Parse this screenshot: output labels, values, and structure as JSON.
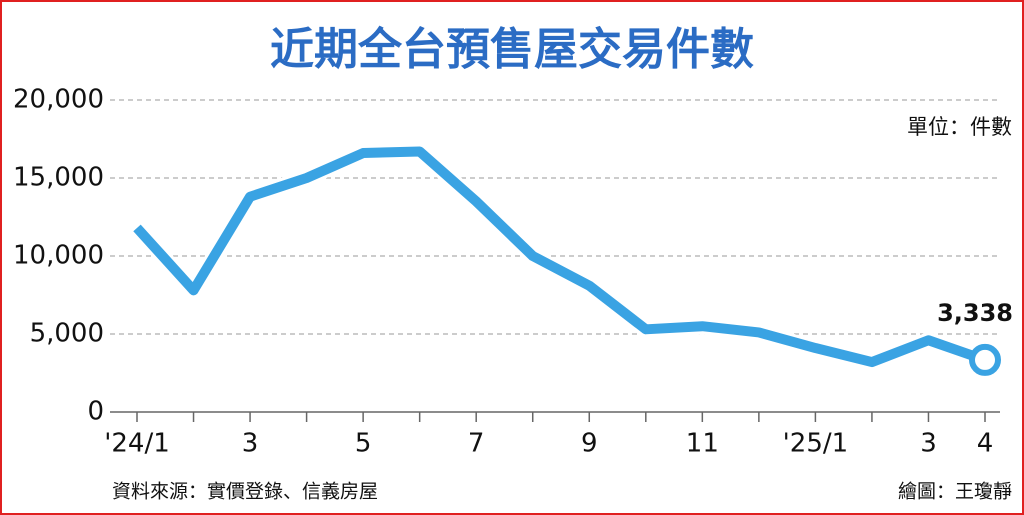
{
  "chart_data": {
    "type": "line",
    "title": "近期全台預售屋交易件數",
    "unit_label": "單位：件數",
    "source": "資料來源：實價登錄、信義房屋",
    "credit": "繪圖：王瓊靜",
    "categories": [
      "'24/1",
      null,
      "3",
      null,
      "5",
      null,
      "7",
      null,
      "9",
      null,
      "11",
      null,
      "'25/1",
      null,
      "3",
      "4"
    ],
    "series": [
      {
        "name": "預售屋交易件數",
        "color": "#3aa3e3",
        "values": [
          11800,
          7800,
          13800,
          15000,
          16600,
          16700,
          13500,
          10000,
          8100,
          5300,
          5500,
          5100,
          4100,
          3200,
          4600,
          3338
        ],
        "value_labels": [
          null,
          null,
          null,
          null,
          null,
          null,
          null,
          null,
          null,
          null,
          null,
          null,
          null,
          null,
          null,
          "3,338"
        ]
      }
    ],
    "ylim": [
      0,
      20000
    ],
    "yticks": [
      0,
      {
        "value": 5000,
        "label": "5,000"
      },
      {
        "value": 10000,
        "label": "10,000"
      },
      {
        "value": 15000,
        "label": "15,000"
      },
      {
        "value": 20000,
        "label": "20,000"
      }
    ],
    "grid": true
  }
}
